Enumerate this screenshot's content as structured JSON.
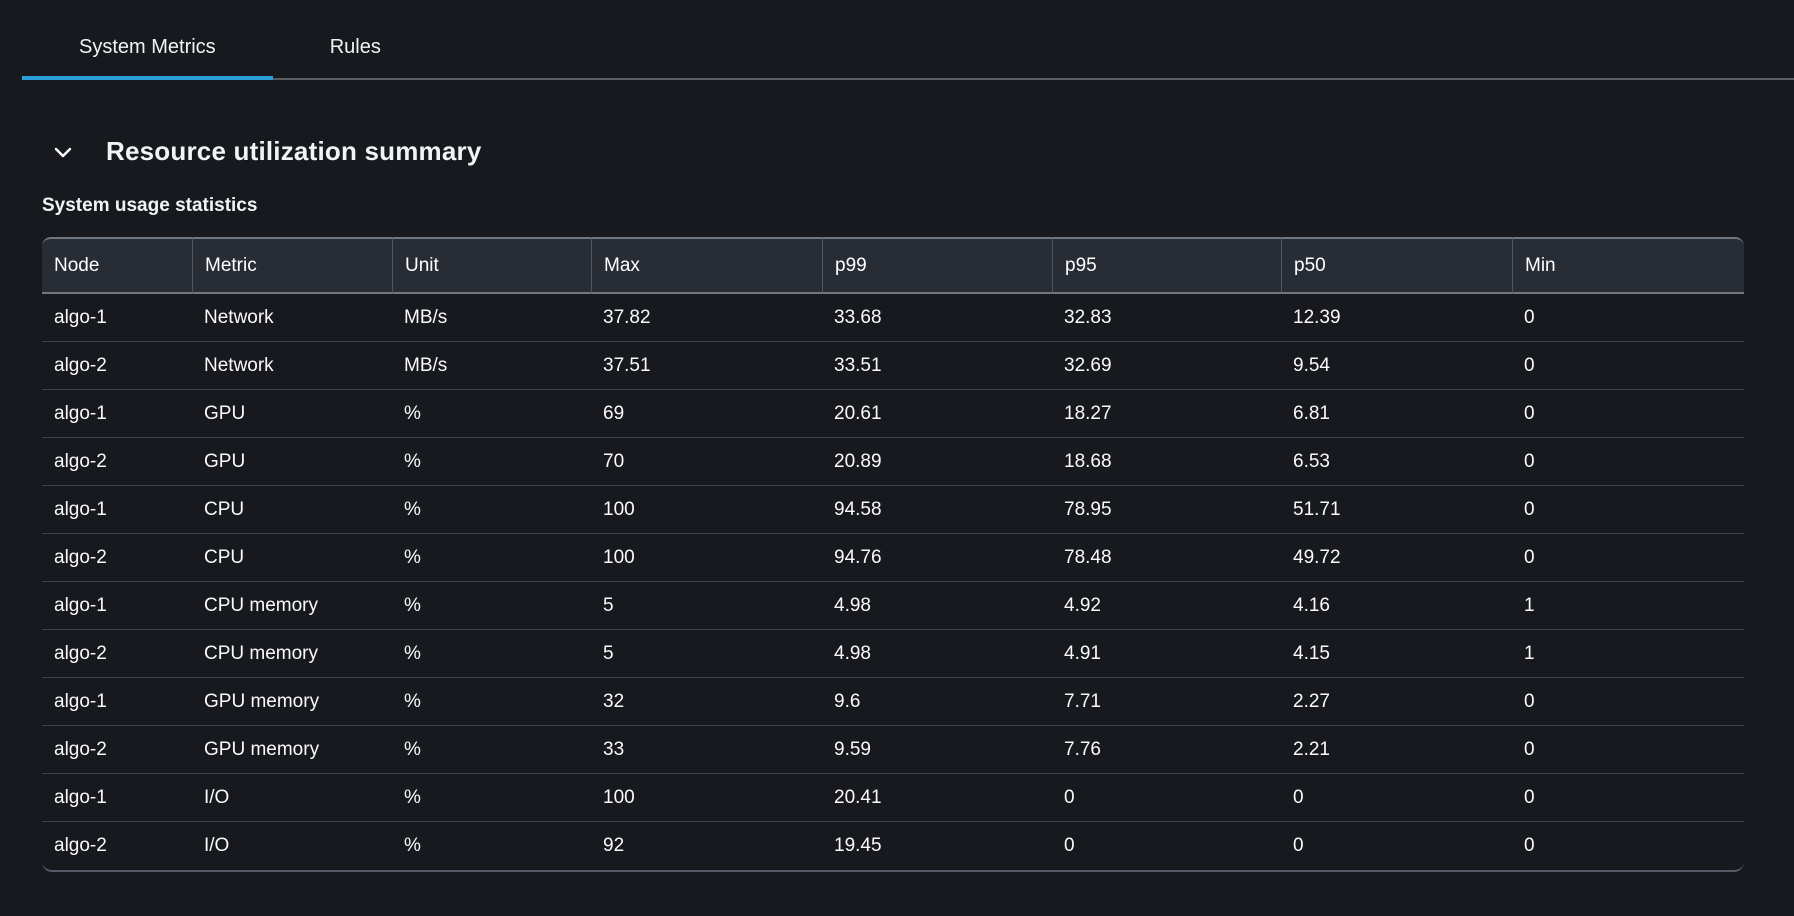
{
  "tabs": {
    "items": [
      {
        "label": "System Metrics",
        "active": true
      },
      {
        "label": "Rules",
        "active": false
      }
    ]
  },
  "section": {
    "title": "Resource utilization summary",
    "subtitle": "System usage statistics",
    "collapse_state": "expanded"
  },
  "table": {
    "columns": [
      "Node",
      "Metric",
      "Unit",
      "Max",
      "p99",
      "p95",
      "p50",
      "Min"
    ],
    "rows": [
      [
        "algo-1",
        "Network",
        "MB/s",
        "37.82",
        "33.68",
        "32.83",
        "12.39",
        "0"
      ],
      [
        "algo-2",
        "Network",
        "MB/s",
        "37.51",
        "33.51",
        "32.69",
        "9.54",
        "0"
      ],
      [
        "algo-1",
        "GPU",
        "%",
        "69",
        "20.61",
        "18.27",
        "6.81",
        "0"
      ],
      [
        "algo-2",
        "GPU",
        "%",
        "70",
        "20.89",
        "18.68",
        "6.53",
        "0"
      ],
      [
        "algo-1",
        "CPU",
        "%",
        "100",
        "94.58",
        "78.95",
        "51.71",
        "0"
      ],
      [
        "algo-2",
        "CPU",
        "%",
        "100",
        "94.76",
        "78.48",
        "49.72",
        "0"
      ],
      [
        "algo-1",
        "CPU memory",
        "%",
        "5",
        "4.98",
        "4.92",
        "4.16",
        "1"
      ],
      [
        "algo-2",
        "CPU memory",
        "%",
        "5",
        "4.98",
        "4.91",
        "4.15",
        "1"
      ],
      [
        "algo-1",
        "GPU memory",
        "%",
        "32",
        "9.6",
        "7.71",
        "2.27",
        "0"
      ],
      [
        "algo-2",
        "GPU memory",
        "%",
        "33",
        "9.59",
        "7.76",
        "2.21",
        "0"
      ],
      [
        "algo-1",
        "I/O",
        "%",
        "100",
        "20.41",
        "0",
        "0",
        "0"
      ],
      [
        "algo-2",
        "I/O",
        "%",
        "92",
        "19.45",
        "0",
        "0",
        "0"
      ]
    ]
  },
  "colors": {
    "accent_tab_underline": "#2b9fd9",
    "page_background": "#17191f",
    "table_header_background": "#272c35"
  }
}
